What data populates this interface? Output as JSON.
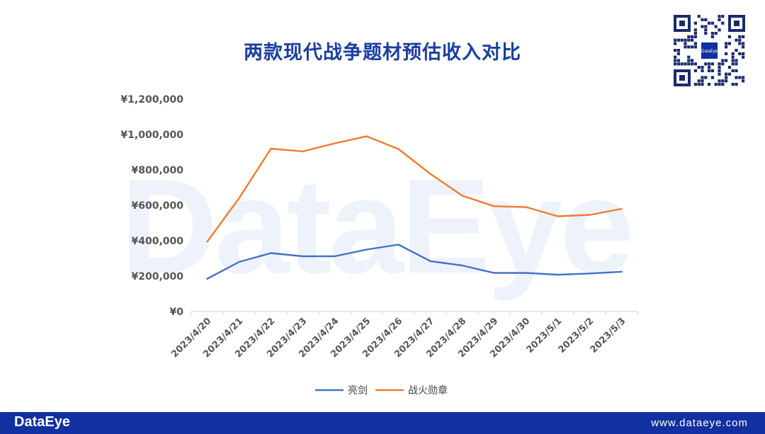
{
  "header": {
    "title": "两款现代战争题材预估收入对比"
  },
  "watermark": {
    "text": "DataEye"
  },
  "qr": {
    "center_label": "DataEye"
  },
  "footer": {
    "brand": "DataEye",
    "url": "www.dataeye.com"
  },
  "colors": {
    "series_1": "#4472c4",
    "series_2": "#ed7d31",
    "footer": "#1330a0",
    "title": "#1c3f9e"
  },
  "chart_data": {
    "type": "line",
    "title": "两款现代战争题材预估收入对比",
    "x": [
      "2023/4/20",
      "2023/4/21",
      "2023/4/22",
      "2023/4/23",
      "2023/4/24",
      "2023/4/25",
      "2023/4/26",
      "2023/4/27",
      "2023/4/28",
      "2023/4/29",
      "2023/4/30",
      "2023/5/1",
      "2023/5/2",
      "2023/5/3"
    ],
    "series": [
      {
        "name": "亮剑",
        "values": [
          185000,
          280000,
          330000,
          312000,
          312000,
          350000,
          378000,
          285000,
          260000,
          218000,
          218000,
          208000,
          215000,
          225000
        ]
      },
      {
        "name": "战火勋章",
        "values": [
          395000,
          640000,
          920000,
          905000,
          950000,
          990000,
          918000,
          778000,
          655000,
          595000,
          590000,
          538000,
          546000,
          580000
        ]
      }
    ],
    "y_ticks": [
      "¥0",
      "¥200,000",
      "¥400,000",
      "¥600,000",
      "¥800,000",
      "¥1,000,000",
      "¥1,200,000"
    ],
    "ylim": [
      0,
      1200000
    ],
    "grid": false,
    "legend_position": "bottom"
  }
}
